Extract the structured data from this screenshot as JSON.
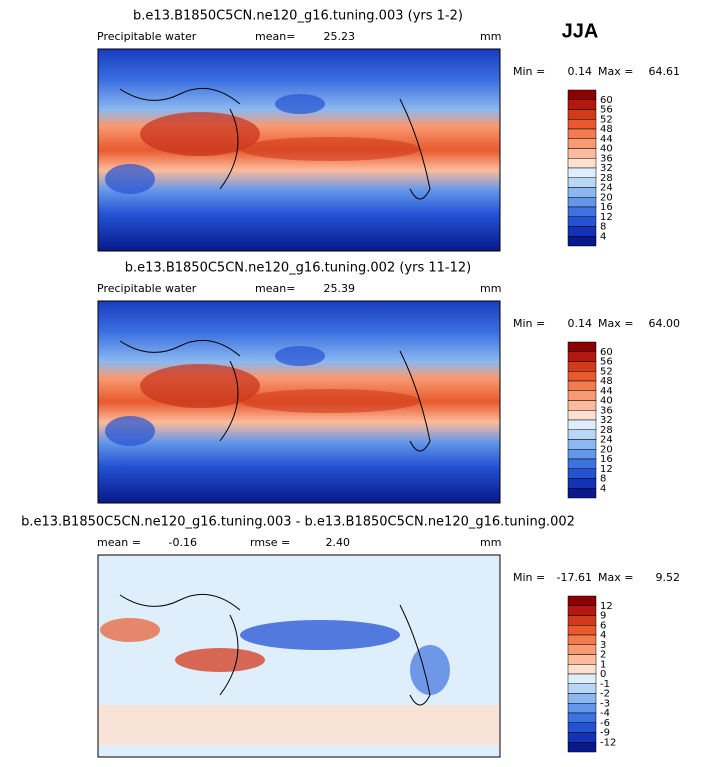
{
  "season": "JJA",
  "panels": [
    {
      "title": "b.e13.B1850C5CN.ne120_g16.tuning.003 (yrs 1-2)",
      "variable": "Precipitable water",
      "stats": [
        {
          "label": "mean=",
          "value": "25.23"
        }
      ],
      "units": "mm",
      "min_label": "Min =",
      "min": "0.14",
      "max_label": "Max =",
      "max": "64.61",
      "levels": [
        "60",
        "56",
        "52",
        "48",
        "44",
        "40",
        "36",
        "32",
        "28",
        "24",
        "20",
        "16",
        "12",
        "8",
        "4"
      ],
      "colors": [
        "#8b0000",
        "#b3170f",
        "#d23a1c",
        "#e85a2e",
        "#f27b50",
        "#f89a72",
        "#fbbb9c",
        "#fde0cf",
        "#dfeefb",
        "#b8d6f6",
        "#8bb8f0",
        "#6496ea",
        "#3e72e0",
        "#2352d3",
        "#1233b5",
        "#08198c"
      ]
    },
    {
      "title": "b.e13.B1850C5CN.ne120_g16.tuning.002 (yrs 11-12)",
      "variable": "Precipitable water",
      "stats": [
        {
          "label": "mean=",
          "value": "25.39"
        }
      ],
      "units": "mm",
      "min_label": "Min =",
      "min": "0.14",
      "max_label": "Max =",
      "max": "64.00",
      "levels": [
        "60",
        "56",
        "52",
        "48",
        "44",
        "40",
        "36",
        "32",
        "28",
        "24",
        "20",
        "16",
        "12",
        "8",
        "4"
      ],
      "colors": [
        "#8b0000",
        "#b3170f",
        "#d23a1c",
        "#e85a2e",
        "#f27b50",
        "#f89a72",
        "#fbbb9c",
        "#fde0cf",
        "#dfeefb",
        "#b8d6f6",
        "#8bb8f0",
        "#6496ea",
        "#3e72e0",
        "#2352d3",
        "#1233b5",
        "#08198c"
      ]
    },
    {
      "title": "b.e13.B1850C5CN.ne120_g16.tuning.003 - b.e13.B1850C5CN.ne120_g16.tuning.002",
      "variable": null,
      "stats": [
        {
          "label": "mean =",
          "value": "-0.16"
        },
        {
          "label": "rmse =",
          "value": "2.40"
        }
      ],
      "units": "mm",
      "min_label": "Min =",
      "min": "-17.61",
      "max_label": "Max =",
      "max": "9.52",
      "levels": [
        "12",
        "9",
        "6",
        "4",
        "3",
        "2",
        "1",
        "0",
        "-1",
        "-2",
        "-3",
        "-4",
        "-6",
        "-9",
        "-12"
      ],
      "colors": [
        "#8b0000",
        "#b3170f",
        "#d23a1c",
        "#e85a2e",
        "#f27b50",
        "#f89a72",
        "#fbbb9c",
        "#fde0cf",
        "#dfeefb",
        "#b8d6f6",
        "#8bb8f0",
        "#6496ea",
        "#3e72e0",
        "#2352d3",
        "#1233b5",
        "#08198c"
      ]
    }
  ]
}
